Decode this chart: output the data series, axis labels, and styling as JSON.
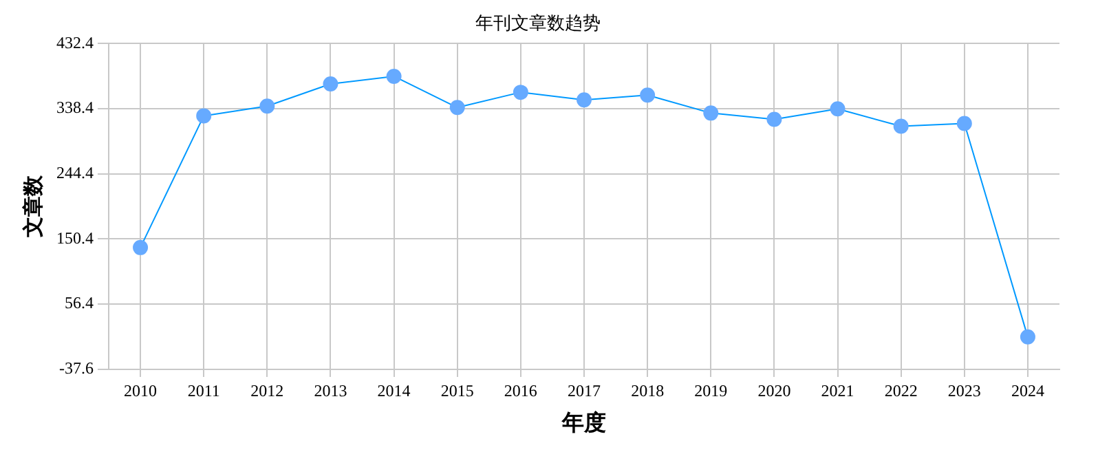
{
  "chart_data": {
    "type": "line",
    "title": "年刊文章数趋势",
    "xlabel": "年度",
    "ylabel": "文章数",
    "categories": [
      "2010",
      "2011",
      "2012",
      "2013",
      "2014",
      "2015",
      "2016",
      "2017",
      "2018",
      "2019",
      "2020",
      "2021",
      "2022",
      "2023",
      "2024"
    ],
    "series": [
      {
        "color": "#0099ff",
        "values": [
          138,
          328,
          342,
          374,
          385,
          340,
          362,
          351,
          358,
          332,
          323,
          338,
          313,
          317,
          9
        ]
      }
    ],
    "ylim": [
      -37.6,
      432.4
    ],
    "yticks": [
      -37.6,
      56.4,
      150.4,
      244.4,
      338.4,
      432.4
    ],
    "grid": true,
    "legend": false,
    "marker": "circle",
    "line_style": "solid"
  }
}
